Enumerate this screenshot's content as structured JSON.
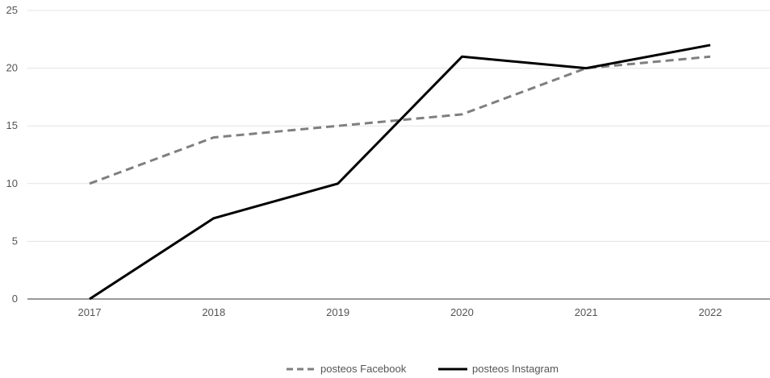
{
  "chart_data": {
    "type": "line",
    "x": [
      "2017",
      "2018",
      "2019",
      "2020",
      "2021",
      "2022"
    ],
    "series": [
      {
        "name": "posteos Facebook",
        "values": [
          10,
          14,
          15,
          16,
          20,
          21
        ],
        "color": "#7f7f7f",
        "line_style": "dashed"
      },
      {
        "name": "posteos Instagram",
        "values": [
          0,
          7,
          10,
          21,
          20,
          22
        ],
        "color": "#000000",
        "line_style": "solid"
      }
    ],
    "y_ticks": [
      0,
      5,
      10,
      15,
      20,
      25
    ],
    "ylim": [
      0,
      25
    ],
    "grid": true,
    "legend_position": "bottom-center",
    "title": "",
    "xlabel": "",
    "ylabel": ""
  }
}
